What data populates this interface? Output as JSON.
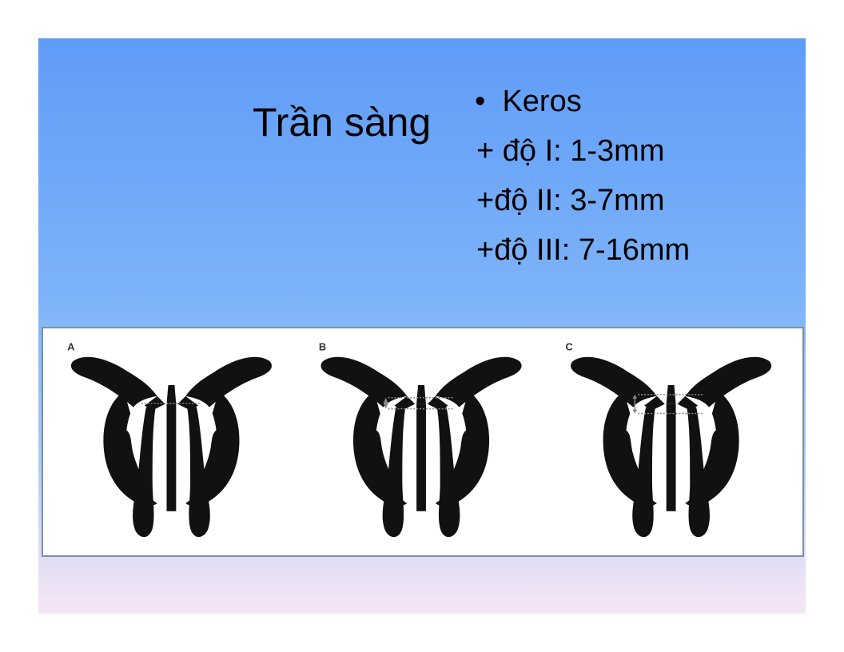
{
  "slide": {
    "title": "Trần sàng",
    "bullet_marker": "•",
    "bullet_heading": "Keros",
    "items": [
      "+ độ I: 1-3mm",
      "+độ II: 3-7mm",
      "+độ III: 7-16mm"
    ]
  },
  "figure": {
    "panels": [
      {
        "letter": "A"
      },
      {
        "letter": "B"
      },
      {
        "letter": "C"
      }
    ]
  },
  "colors": {
    "background_top": "#5f9cf8",
    "background_bottom": "#f6e6f5",
    "text": "#000000",
    "figure_frame": "#7f8fa3",
    "anatomy_fill": "#111111"
  }
}
